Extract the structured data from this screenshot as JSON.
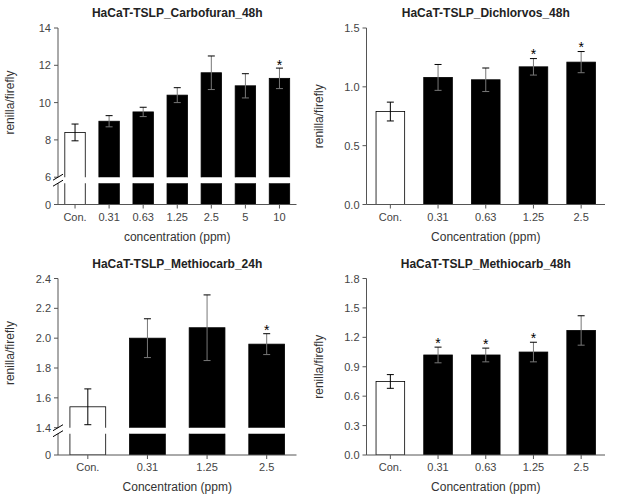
{
  "chart_data": [
    {
      "type": "bar",
      "title": "HaCaT-TSLP_Carbofuran_48h",
      "xlabel": "concentration (ppm)",
      "ylabel": "renilla/firefly",
      "categories": [
        "Con.",
        "0.31",
        "0.63",
        "1.25",
        "2.5",
        "5",
        "10"
      ],
      "values": [
        8.4,
        9.0,
        9.5,
        10.4,
        11.6,
        10.9,
        11.3
      ],
      "errors": [
        0.45,
        0.3,
        0.25,
        0.4,
        0.9,
        0.65,
        0.55
      ],
      "colors": [
        "white",
        "black",
        "black",
        "black",
        "black",
        "black",
        "black"
      ],
      "annotations": [
        {
          "category": "10",
          "text": "*"
        }
      ],
      "ylim": [
        6,
        14
      ],
      "yticks": [
        6,
        8,
        10,
        12,
        14
      ],
      "break_ylim": [
        0.0,
        0.5
      ],
      "break_yticks": [
        0
      ],
      "grid": false
    },
    {
      "type": "bar",
      "title": "HaCaT-TSLP_Dichlorvos_48h",
      "xlabel": "Concentration (ppm)",
      "ylabel": "renilla/firefly",
      "categories": [
        "Con.",
        "0.31",
        "0.63",
        "1.25",
        "2.5"
      ],
      "values": [
        0.79,
        1.08,
        1.06,
        1.17,
        1.21
      ],
      "errors": [
        0.08,
        0.11,
        0.1,
        0.07,
        0.09
      ],
      "colors": [
        "white",
        "black",
        "black",
        "black",
        "black"
      ],
      "annotations": [
        {
          "category": "1.25",
          "text": "*"
        },
        {
          "category": "2.5",
          "text": "*"
        }
      ],
      "ylim": [
        0.0,
        1.5
      ],
      "yticks": [
        {
          "value": 0.0,
          "label": "0.0"
        },
        0.5,
        {
          "value": 1.0,
          "label": "1.0"
        },
        1.5
      ],
      "grid": false
    },
    {
      "type": "bar",
      "title": "HaCaT-TSLP_Methiocarb_24h",
      "xlabel": "Concentration (ppm)",
      "ylabel": "renilla/firefly",
      "categories": [
        "Con.",
        "0.31",
        "1.25",
        "2.5"
      ],
      "values": [
        1.54,
        2.0,
        2.07,
        1.96
      ],
      "errors": [
        0.12,
        0.13,
        0.22,
        0.07
      ],
      "colors": [
        "white",
        "black",
        "black",
        "black"
      ],
      "annotations": [
        {
          "category": "2.5",
          "text": "*"
        }
      ],
      "ylim": [
        1.4,
        2.4
      ],
      "yticks": [
        1.4,
        1.6,
        1.8,
        {
          "value": 2.0,
          "label": "2.0"
        },
        2.2,
        2.4
      ],
      "break_ylim": [
        0.0,
        0.3
      ],
      "break_yticks": [
        0
      ],
      "grid": false
    },
    {
      "type": "bar",
      "title": "HaCaT-TSLP_Methiocarb_48h",
      "xlabel": "Concentration (ppm)",
      "ylabel": "renilla/firefly",
      "categories": [
        "Con.",
        "0.31",
        "0.63",
        "1.25",
        "2.5"
      ],
      "values": [
        0.75,
        1.02,
        1.02,
        1.05,
        1.27
      ],
      "errors": [
        0.07,
        0.08,
        0.07,
        0.1,
        0.15
      ],
      "colors": [
        "white",
        "black",
        "black",
        "black",
        "black"
      ],
      "annotations": [
        {
          "category": "0.31",
          "text": "*"
        },
        {
          "category": "0.63",
          "text": "*"
        },
        {
          "category": "1.25",
          "text": "*"
        }
      ],
      "ylim": [
        0.0,
        1.8
      ],
      "yticks": [
        {
          "value": 0.0,
          "label": "0.0"
        },
        0.3,
        0.6,
        0.9,
        1.2,
        1.5,
        1.8
      ],
      "grid": false
    }
  ]
}
